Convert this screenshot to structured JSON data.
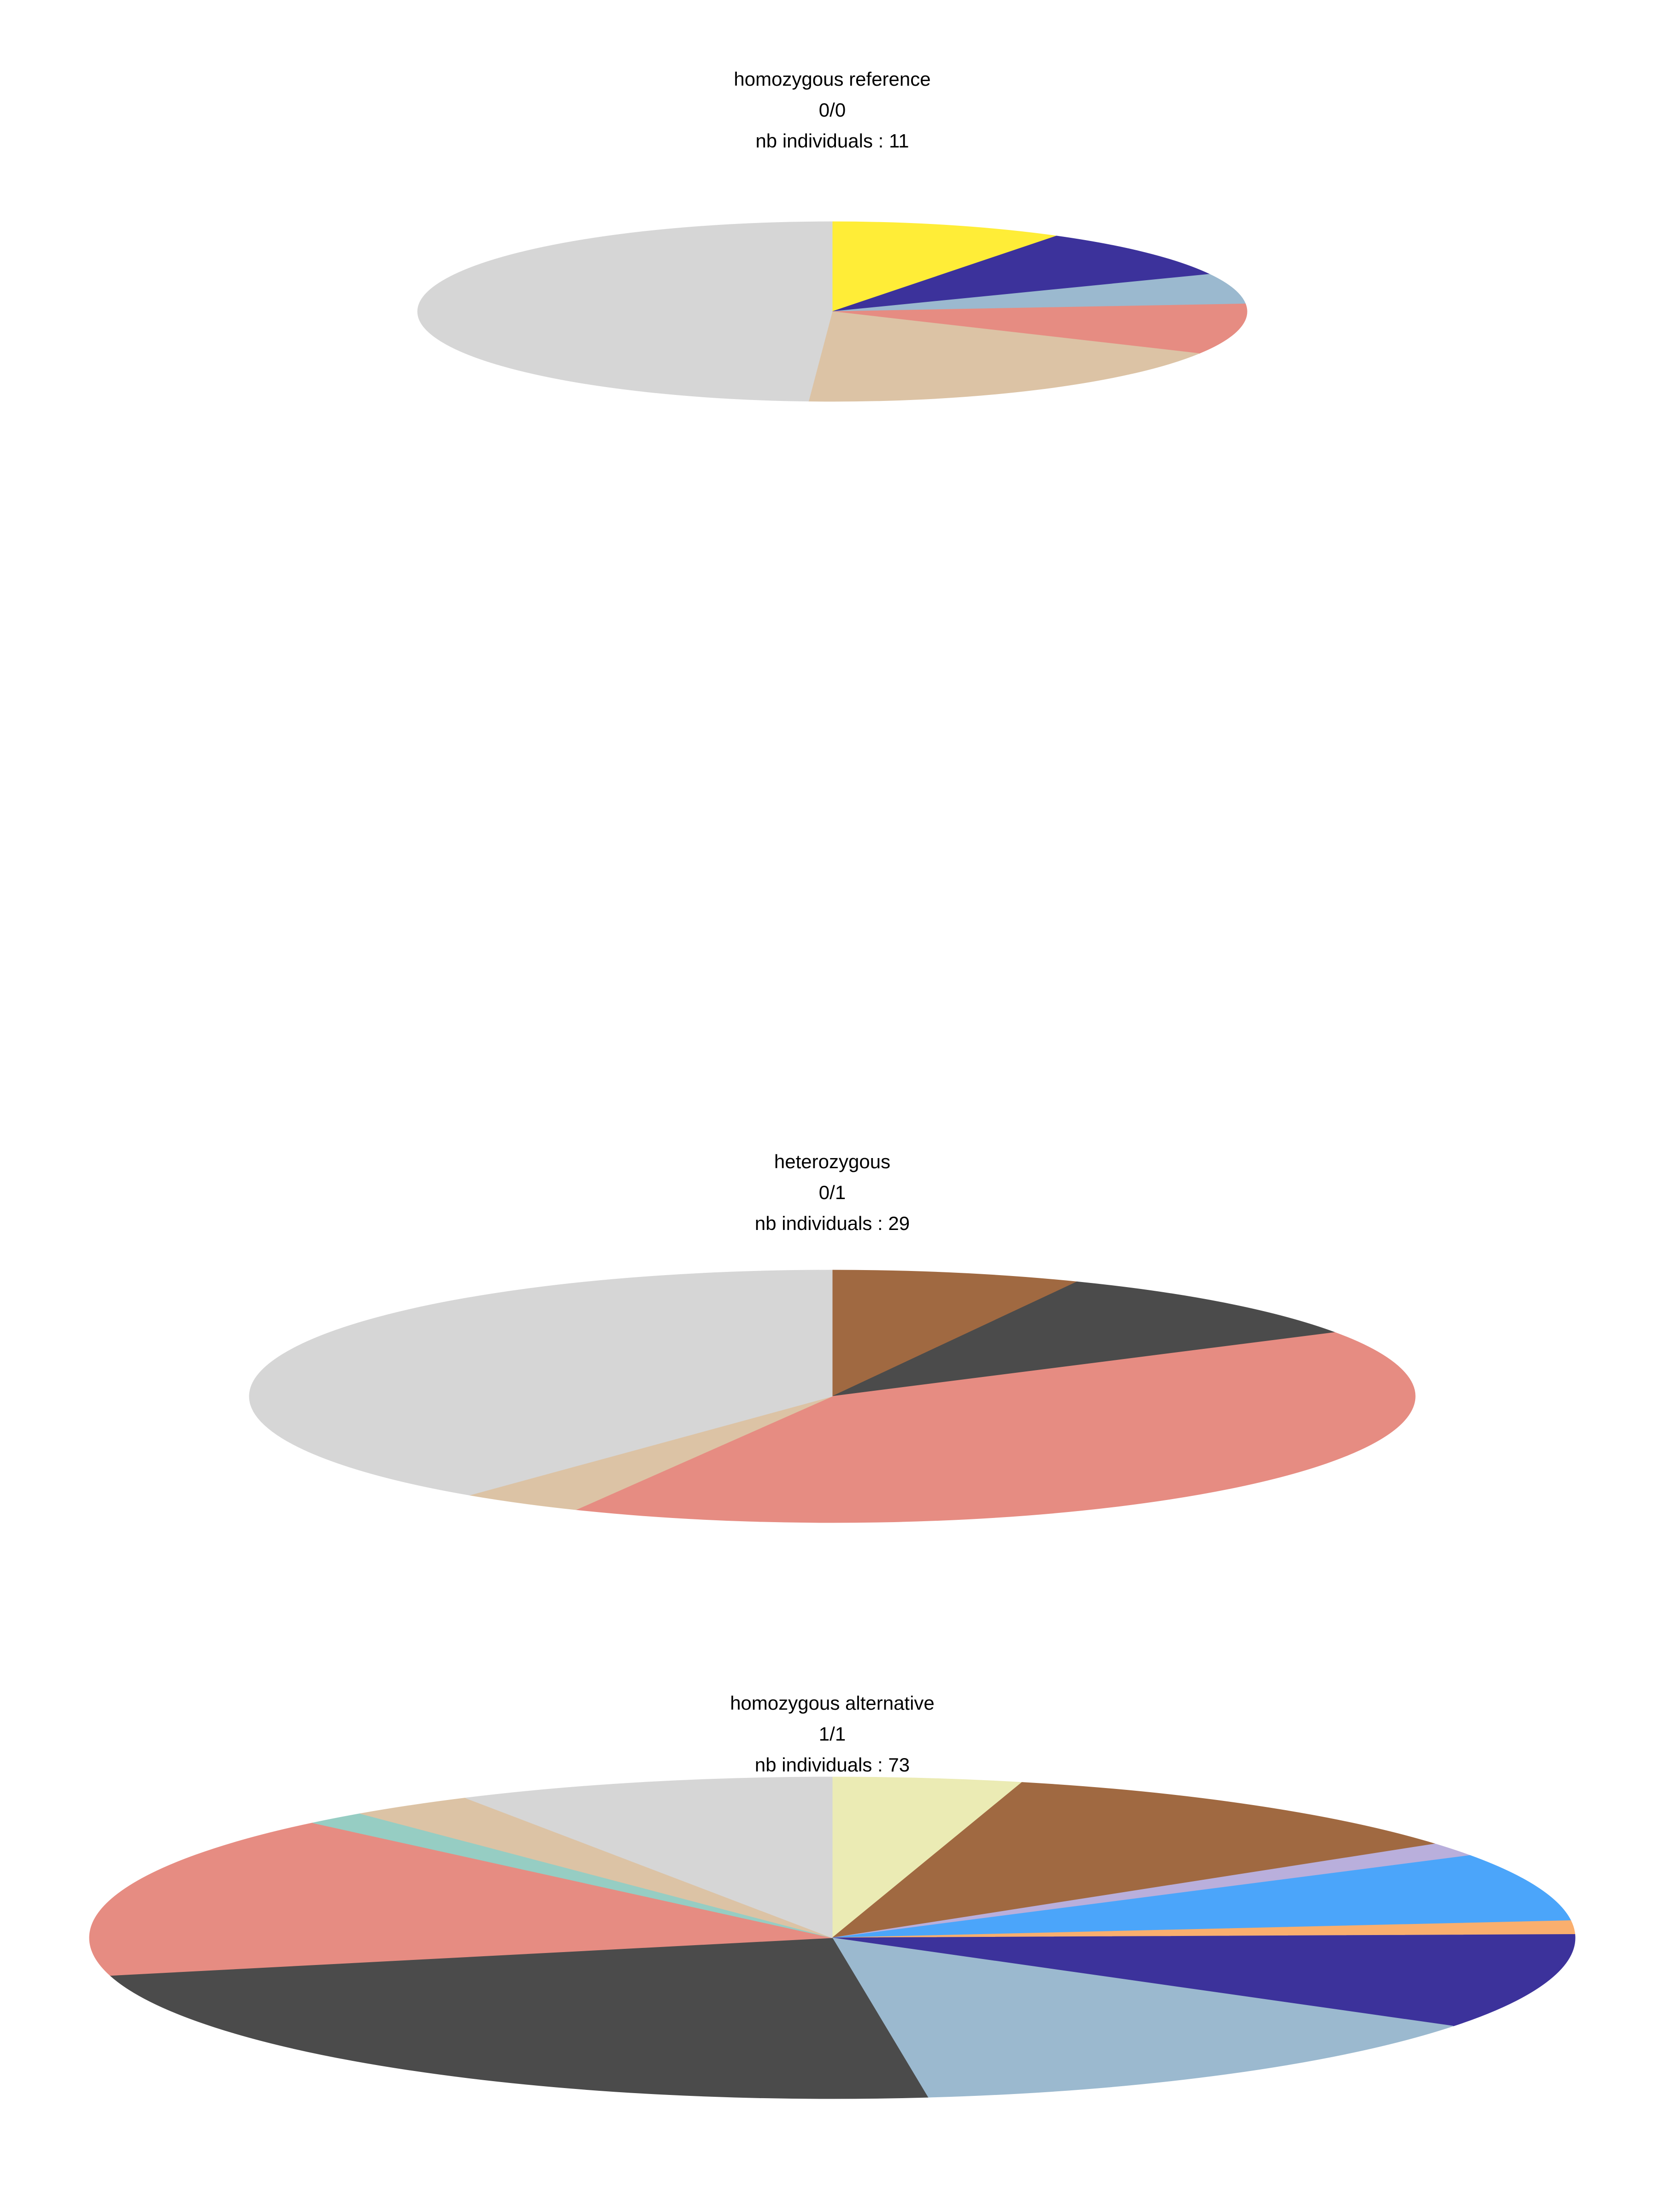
{
  "chart_data": [
    {
      "type": "pie",
      "title_lines": [
        "homozygous reference",
        "0/0",
        "nb individuals : 11"
      ],
      "slices": [
        {
          "value": 1,
          "color": "#ffed37"
        },
        {
          "value": 1,
          "color": "#3c329b"
        },
        {
          "value": 0.6,
          "color": "#9bb9cf"
        },
        {
          "value": 1,
          "color": "#e68c82"
        },
        {
          "value": 2,
          "color": "#dcc3a5"
        },
        {
          "value": 5.4,
          "color": "#d6d6d6"
        }
      ]
    },
    {
      "type": "pie",
      "title_lines": [
        "heterozygous",
        "0/1",
        "nb individuals : 29"
      ],
      "slices": [
        {
          "value": 2,
          "color": "#a06941"
        },
        {
          "value": 2.8,
          "color": "#4b4b4b"
        },
        {
          "value": 11.8,
          "color": "#e68c82"
        },
        {
          "value": 1,
          "color": "#dcc3a5"
        },
        {
          "value": 11.4,
          "color": "#d6d6d6"
        }
      ]
    },
    {
      "type": "pie",
      "title_lines": [
        "homozygous alternative",
        "1/1",
        "nb individuals : 73"
      ],
      "slices": [
        {
          "value": 3,
          "color": "#ebebb4"
        },
        {
          "value": 8,
          "color": "#a06941"
        },
        {
          "value": 1,
          "color": "#b9afdc"
        },
        {
          "value": 5,
          "color": "#4ba5fa"
        },
        {
          "value": 1,
          "color": "#faaf6e"
        },
        {
          "value": 7,
          "color": "#3c329b"
        },
        {
          "value": 10,
          "color": "#9bb9cf"
        },
        {
          "value": 17,
          "color": "#4b4b4b"
        },
        {
          "value": 12,
          "color": "#e68c82"
        },
        {
          "value": 1,
          "color": "#96cdc3"
        },
        {
          "value": 2,
          "color": "#dcc3a5"
        },
        {
          "value": 6,
          "color": "#d6d6d6"
        }
      ]
    }
  ]
}
